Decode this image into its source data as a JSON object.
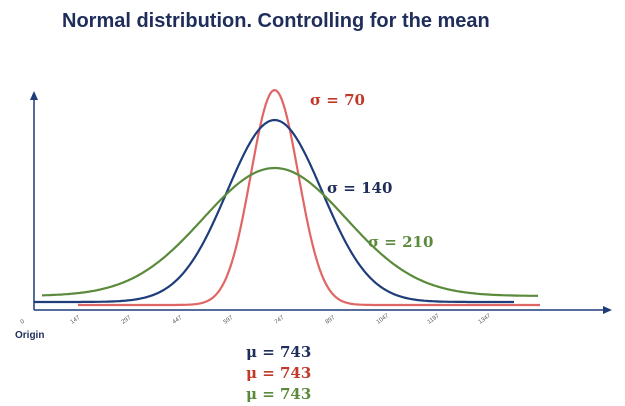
{
  "slide": {
    "title": "Normal distribution. Controlling for the mean",
    "origin_label": "Origin"
  },
  "colors": {
    "axis": "#1f3d7a",
    "sigma70": "#e06666",
    "sigma140": "#1f3d7a",
    "sigma210": "#5a8a3c",
    "label70": "#c0392b",
    "label140": "#1f2d5a",
    "label210": "#5a8a3c"
  },
  "chart_data": {
    "type": "line",
    "title": "Normal distribution. Controlling for the mean",
    "x_ticks": [
      "0",
      "147",
      "297",
      "447",
      "597",
      "747",
      "897",
      "1047",
      "1197",
      "1347"
    ],
    "series": [
      {
        "name": "σ = 70",
        "mean": 743,
        "sd": 70,
        "color": "#e06666",
        "mean_label": "μ = 743"
      },
      {
        "name": "σ = 140",
        "mean": 743,
        "sd": 140,
        "color": "#1f3d7a",
        "mean_label": "μ = 743"
      },
      {
        "name": "σ = 210",
        "mean": 743,
        "sd": 210,
        "color": "#5a8a3c",
        "mean_label": "μ = 743"
      }
    ],
    "xlim": [
      0,
      1500
    ],
    "grid": false,
    "legend": "labels next to curves"
  }
}
